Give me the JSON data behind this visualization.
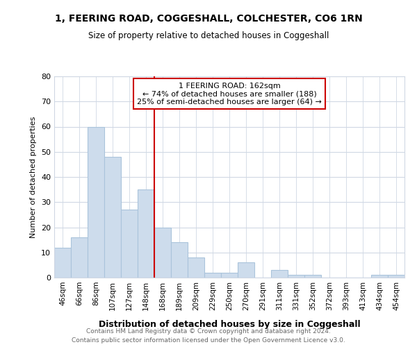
{
  "title": "1, FEERING ROAD, COGGESHALL, COLCHESTER, CO6 1RN",
  "subtitle": "Size of property relative to detached houses in Coggeshall",
  "xlabel": "Distribution of detached houses by size in Coggeshall",
  "ylabel": "Number of detached properties",
  "categories": [
    "46sqm",
    "66sqm",
    "86sqm",
    "107sqm",
    "127sqm",
    "148sqm",
    "168sqm",
    "189sqm",
    "209sqm",
    "229sqm",
    "250sqm",
    "270sqm",
    "291sqm",
    "311sqm",
    "331sqm",
    "352sqm",
    "372sqm",
    "393sqm",
    "413sqm",
    "434sqm",
    "454sqm"
  ],
  "values": [
    12,
    16,
    60,
    48,
    27,
    35,
    20,
    14,
    8,
    2,
    2,
    6,
    0,
    3,
    1,
    1,
    0,
    0,
    0,
    1,
    1
  ],
  "bar_color": "#cddcec",
  "bar_edge_color": "#aac4db",
  "red_line_index": 6,
  "annotation_text": "1 FEERING ROAD: 162sqm\n← 74% of detached houses are smaller (188)\n25% of semi-detached houses are larger (64) →",
  "annotation_box_color": "#ffffff",
  "annotation_box_edge": "#cc0000",
  "red_line_color": "#cc0000",
  "ylim": [
    0,
    80
  ],
  "yticks": [
    0,
    10,
    20,
    30,
    40,
    50,
    60,
    70,
    80
  ],
  "footer_text": "Contains HM Land Registry data © Crown copyright and database right 2024.\nContains public sector information licensed under the Open Government Licence v3.0.",
  "background_color": "#ffffff",
  "plot_background": "#ffffff",
  "grid_color": "#d0d8e4"
}
